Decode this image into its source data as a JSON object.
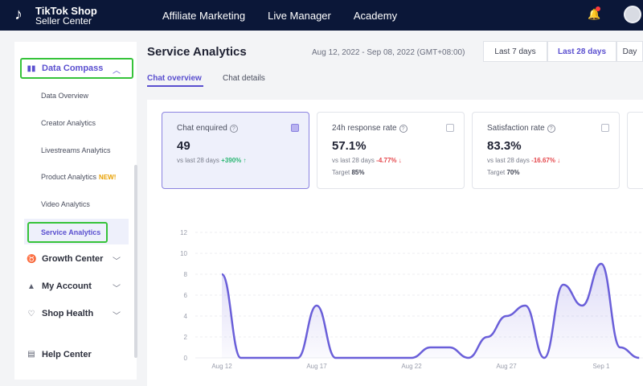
{
  "topbar": {
    "brand_line1": "TikTok Shop",
    "brand_line2": "Seller Center",
    "nav": [
      "Affiliate Marketing",
      "Live Manager",
      "Academy"
    ]
  },
  "sidebar": {
    "data_compass": "Data Compass",
    "sub_items": [
      "Data Overview",
      "Creator Analytics",
      "Livestreams Analytics",
      "Product Analytics",
      "Video Analytics",
      "Service Analytics"
    ],
    "new_badge": "NEW!",
    "groups": [
      "Growth Center",
      "My Account",
      "Shop Health",
      "Help Center"
    ]
  },
  "header": {
    "title": "Service Analytics",
    "date_range": "Aug 12, 2022 - Sep 08, 2022 (GMT+08:00)",
    "range_buttons": [
      "Last 7 days",
      "Last 28 days",
      "Day"
    ],
    "active_range": "Last 28 days"
  },
  "tabs": [
    "Chat overview",
    "Chat details"
  ],
  "cards": [
    {
      "title": "Chat enquired",
      "value": "49",
      "compare_label": "vs last 28 days",
      "change": "+390%",
      "direction": "up",
      "target_label": "",
      "target": ""
    },
    {
      "title": "24h response rate",
      "value": "57.1%",
      "compare_label": "vs last 28 days",
      "change": "-4.77%",
      "direction": "down",
      "target_label": "Target",
      "target": "85%"
    },
    {
      "title": "Satisfaction rate",
      "value": "83.3%",
      "compare_label": "vs last 28 days",
      "change": "-16.67%",
      "direction": "down",
      "target_label": "Target",
      "target": "70%"
    }
  ],
  "chart_data": {
    "type": "area",
    "x_tick_labels": [
      "Aug 12",
      "Aug 17",
      "Aug 22",
      "Aug 27",
      "Sep 1"
    ],
    "ylim": [
      0,
      12
    ],
    "y_ticks": [
      "0",
      "2",
      "4",
      "6",
      "8",
      "10",
      "12"
    ],
    "x": [
      "Aug 12",
      "Aug 13",
      "Aug 14",
      "Aug 15",
      "Aug 16",
      "Aug 17",
      "Aug 18",
      "Aug 19",
      "Aug 20",
      "Aug 21",
      "Aug 22",
      "Aug 23",
      "Aug 24",
      "Aug 25",
      "Aug 26",
      "Aug 27",
      "Aug 28",
      "Aug 29",
      "Aug 30",
      "Aug 31",
      "Sep 1",
      "Sep 2",
      "Sep 3"
    ],
    "series": [
      {
        "values": [
          8,
          0,
          0,
          0,
          0,
          5,
          0,
          0,
          0,
          0,
          0,
          1,
          1,
          0,
          2,
          4,
          5,
          0,
          7,
          5,
          9,
          1,
          0
        ],
        "color": "#6a5fd9"
      }
    ],
    "grid": true
  }
}
